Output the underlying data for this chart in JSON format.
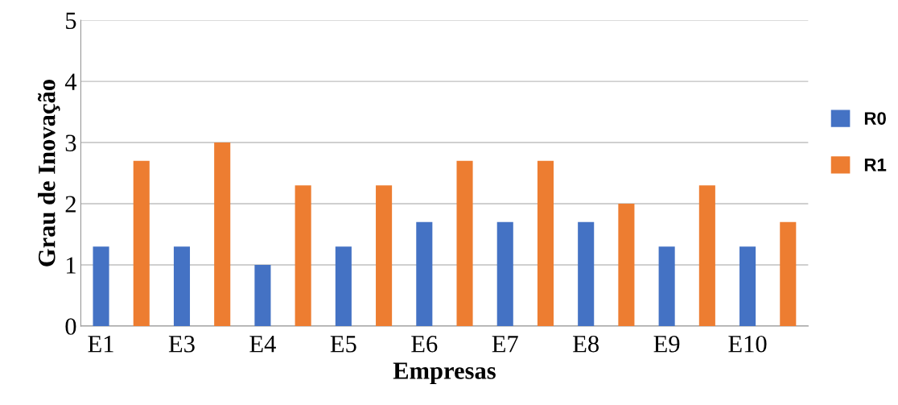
{
  "chart_data": {
    "type": "bar",
    "xlabel": "Empresas",
    "ylabel": "Grau de Inovação",
    "categories": [
      "E1",
      "E3",
      "E4",
      "E5",
      "E6",
      "E7",
      "E8",
      "E9",
      "E10"
    ],
    "series": [
      {
        "name": "R0",
        "color": "#4472c4",
        "values": [
          1.3,
          1.3,
          1.0,
          1.3,
          1.7,
          1.7,
          1.7,
          1.3,
          1.3
        ]
      },
      {
        "name": "R1",
        "color": "#ed7d31",
        "values": [
          2.7,
          3.0,
          2.3,
          2.3,
          2.7,
          2.7,
          2.0,
          2.3,
          1.7
        ]
      }
    ],
    "ylim": [
      0,
      5
    ],
    "yticks": [
      0,
      1,
      2,
      3,
      4,
      5
    ],
    "grid": "y",
    "legend": "right"
  }
}
